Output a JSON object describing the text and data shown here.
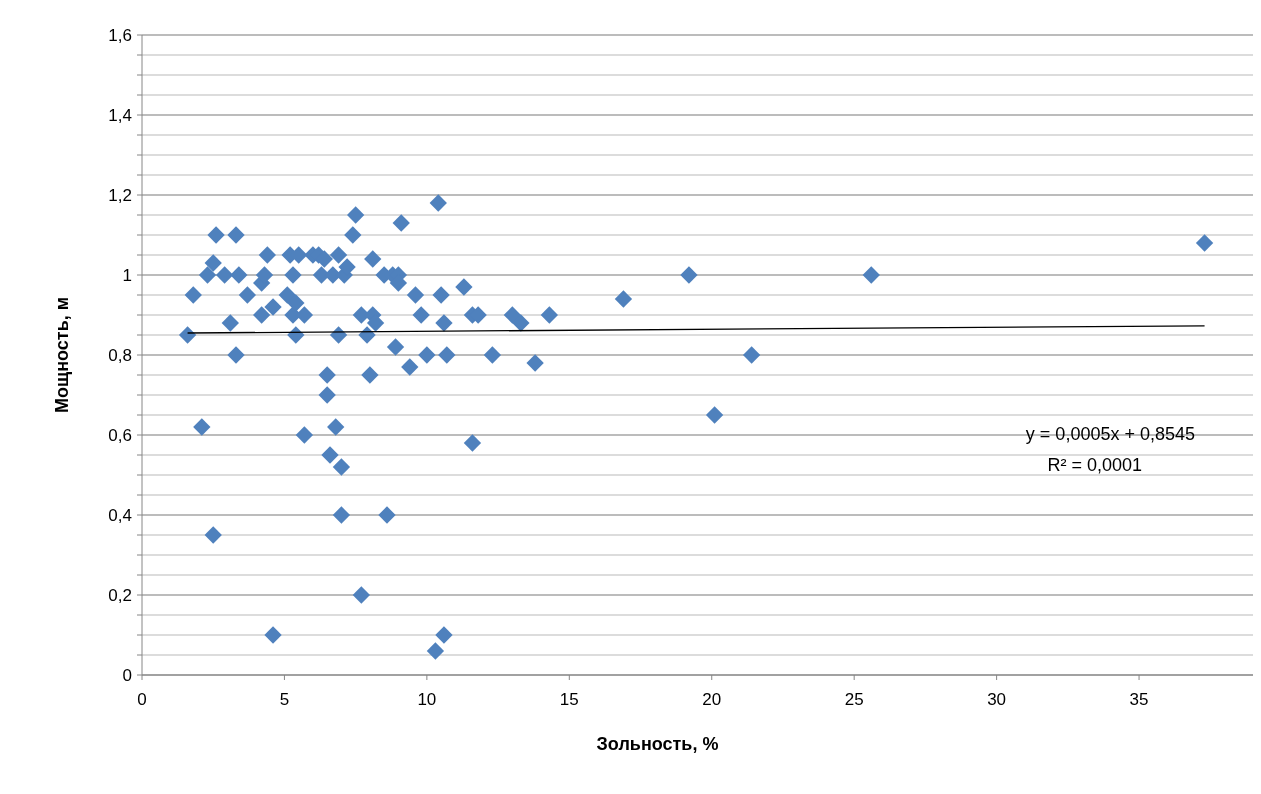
{
  "chart_data": {
    "type": "scatter",
    "xlabel": "Зольность, %",
    "ylabel": "Мощность, м",
    "xlim": [
      0,
      39
    ],
    "ylim": [
      0,
      1.6
    ],
    "xticks": [
      0,
      5,
      10,
      15,
      20,
      25,
      30,
      35
    ],
    "yticks": [
      {
        "value": 0,
        "label": "0"
      },
      {
        "value": 0.05,
        "label": null
      },
      {
        "value": 0.1,
        "label": null
      },
      {
        "value": 0.15,
        "label": null
      },
      {
        "value": 0.2,
        "label": "0,2"
      },
      {
        "value": 0.25,
        "label": null
      },
      {
        "value": 0.3,
        "label": null
      },
      {
        "value": 0.35,
        "label": null
      },
      {
        "value": 0.4,
        "label": "0,4"
      },
      {
        "value": 0.45,
        "label": null
      },
      {
        "value": 0.5,
        "label": null
      },
      {
        "value": 0.55,
        "label": null
      },
      {
        "value": 0.6,
        "label": "0,6"
      },
      {
        "value": 0.65,
        "label": null
      },
      {
        "value": 0.7,
        "label": null
      },
      {
        "value": 0.75,
        "label": null
      },
      {
        "value": 0.8,
        "label": "0,8"
      },
      {
        "value": 0.85,
        "label": null
      },
      {
        "value": 0.9,
        "label": null
      },
      {
        "value": 0.95,
        "label": null
      },
      {
        "value": 1,
        "label": "1"
      },
      {
        "value": 1.05,
        "label": null
      },
      {
        "value": 1.1,
        "label": null
      },
      {
        "value": 1.15,
        "label": null
      },
      {
        "value": 1.2,
        "label": "1,2"
      },
      {
        "value": 1.25,
        "label": null
      },
      {
        "value": 1.3,
        "label": null
      },
      {
        "value": 1.35,
        "label": null
      },
      {
        "value": 1.4,
        "label": "1,4"
      },
      {
        "value": 1.45,
        "label": null
      },
      {
        "value": 1.5,
        "label": null
      },
      {
        "value": 1.55,
        "label": null
      },
      {
        "value": 1.6,
        "label": "1,6"
      }
    ],
    "grid": "y",
    "series": [
      {
        "marker": "diamond",
        "color": "#4f81bd",
        "x": [
          1.6,
          1.8,
          2.1,
          2.3,
          2.5,
          2.6,
          2.5,
          2.9,
          3.1,
          3.3,
          3.3,
          3.4,
          3.7,
          4.2,
          4.3,
          4.2,
          4.4,
          4.6,
          4.6,
          5.1,
          5.2,
          5.3,
          5.3,
          5.4,
          5.4,
          5.5,
          5.7,
          5.7,
          6.0,
          6.2,
          6.3,
          6.5,
          6.5,
          6.6,
          6.4,
          6.7,
          6.8,
          6.9,
          6.9,
          7.0,
          7.0,
          7.1,
          7.2,
          7.4,
          7.5,
          7.7,
          7.7,
          7.9,
          8.0,
          8.1,
          8.1,
          8.2,
          8.5,
          8.6,
          8.8,
          8.9,
          9.0,
          9.0,
          9.1,
          9.4,
          9.6,
          9.8,
          10.0,
          10.3,
          10.4,
          10.5,
          10.6,
          10.6,
          10.7,
          11.3,
          11.6,
          11.6,
          11.8,
          12.3,
          13.0,
          13.3,
          13.8,
          14.3,
          16.9,
          19.2,
          20.1,
          21.4,
          25.6,
          37.3
        ],
        "values": [
          0.85,
          0.95,
          0.62,
          1.0,
          1.03,
          1.1,
          0.35,
          1.0,
          0.88,
          1.1,
          0.8,
          1.0,
          0.95,
          0.98,
          1.0,
          0.9,
          1.05,
          0.92,
          0.1,
          0.95,
          1.05,
          0.9,
          1.0,
          0.93,
          0.85,
          1.05,
          0.9,
          0.6,
          1.05,
          1.05,
          1.0,
          0.75,
          0.7,
          0.55,
          1.04,
          1.0,
          0.62,
          0.85,
          1.05,
          0.52,
          0.4,
          1.0,
          1.02,
          1.1,
          1.15,
          0.9,
          0.2,
          0.85,
          0.75,
          1.04,
          0.9,
          0.88,
          1.0,
          0.4,
          1.0,
          0.82,
          1.0,
          0.98,
          1.13,
          0.77,
          0.95,
          0.9,
          0.8,
          0.06,
          1.18,
          0.95,
          0.88,
          0.1,
          0.8,
          0.97,
          0.58,
          0.9,
          0.9,
          0.8,
          0.9,
          0.88,
          0.78,
          0.9,
          0.94,
          1.0,
          0.65,
          0.8,
          1.0,
          1.08
        ]
      },
      {
        "type": "line",
        "color": "#000000",
        "x": [
          1.6,
          37.3
        ],
        "values": [
          0.855,
          0.873
        ]
      }
    ],
    "annotations": [
      "y = 0,0005x + 0,8545",
      "R² = 0,0001"
    ]
  }
}
